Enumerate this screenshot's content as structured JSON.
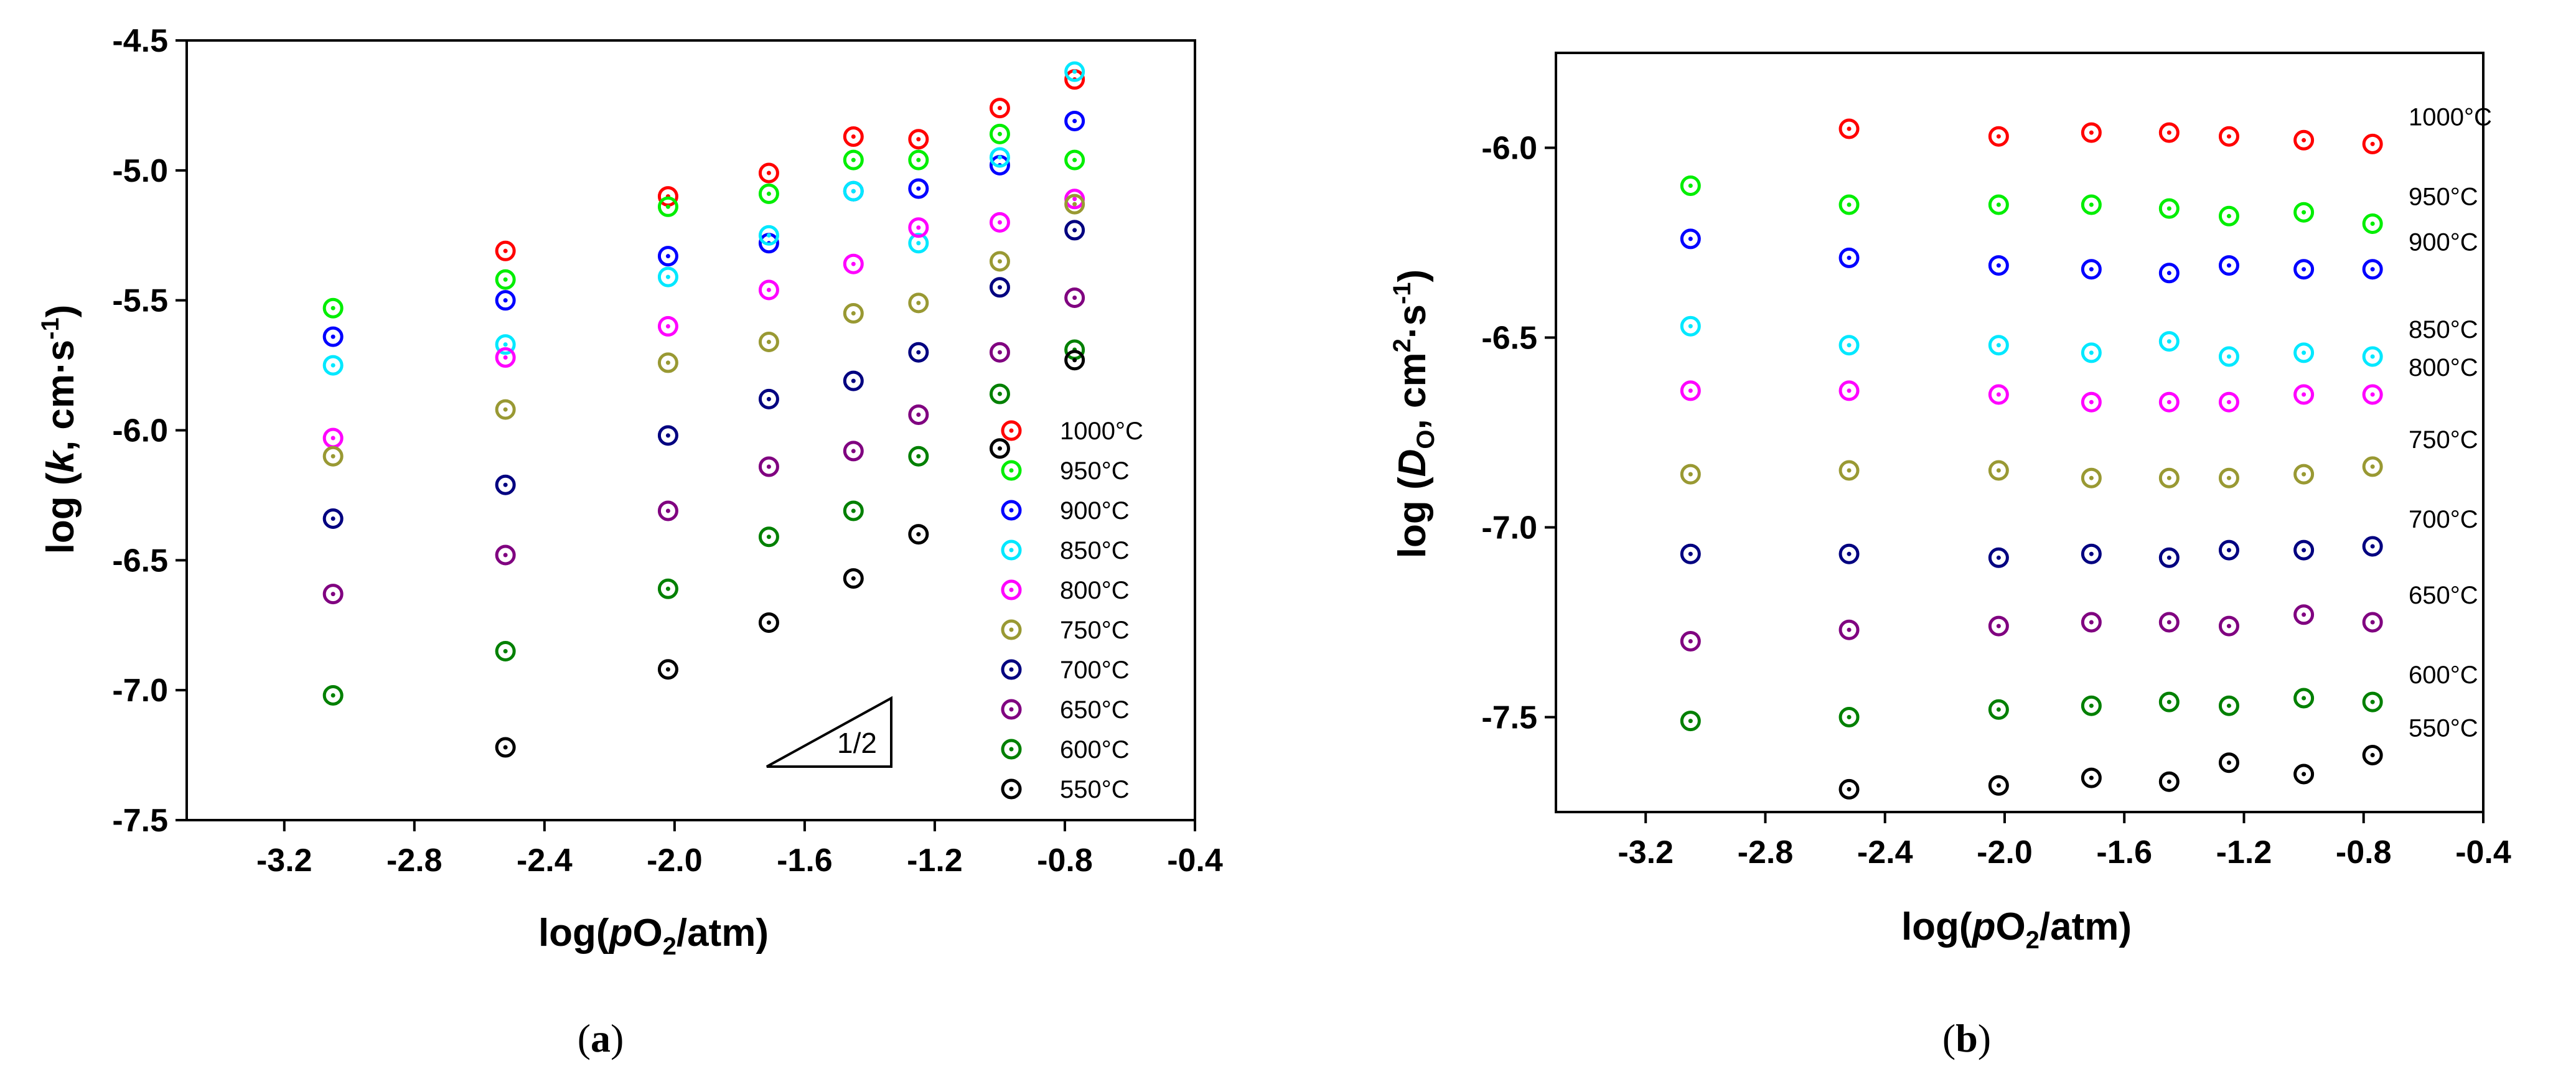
{
  "chart_data": [
    {
      "type": "scatter",
      "panel_label": "(a)",
      "xlabel": "log(pO2/atm)",
      "ylabel": "log (k, cm·s-1)",
      "xlim": [
        -3.5,
        -0.4
      ],
      "ylim": [
        -7.5,
        -4.5
      ],
      "x_ticks": [
        "-3.2",
        "-2.8",
        "-2.4",
        "-2.0",
        "-1.6",
        "-1.2",
        "-0.8",
        "-0.4"
      ],
      "y_ticks": [
        "-4.5",
        "-5.0",
        "-5.5",
        "-6.0",
        "-6.5",
        "-7.0",
        "-7.5"
      ],
      "x": [
        -3.05,
        -2.52,
        -2.02,
        -1.71,
        -1.45,
        -1.25,
        -1.0,
        -0.77
      ],
      "annotation": "1/2",
      "legend_position": "bottom-right",
      "series": [
        {
          "name": "1000°C",
          "color": "#ff0000",
          "values": [
            null,
            -5.31,
            -5.1,
            -5.01,
            -4.87,
            -4.88,
            -4.76,
            -4.65
          ]
        },
        {
          "name": "950°C",
          "color": "#00ee00",
          "values": [
            -5.53,
            -5.42,
            -5.14,
            -5.09,
            -4.96,
            -4.96,
            -4.86,
            -4.96
          ]
        },
        {
          "name": "900°C",
          "color": "#0000ff",
          "values": [
            -5.64,
            -5.5,
            -5.33,
            -5.28,
            -5.08,
            -5.07,
            -4.98,
            -4.81
          ]
        },
        {
          "name": "850°C",
          "color": "#00e8ff",
          "values": [
            -5.75,
            -5.67,
            -5.41,
            -5.25,
            -5.08,
            -5.28,
            -4.95,
            -4.62
          ]
        },
        {
          "name": "800°C",
          "color": "#ff00ff",
          "values": [
            -6.03,
            -5.72,
            -5.6,
            -5.46,
            -5.36,
            -5.22,
            -5.2,
            -5.11
          ]
        },
        {
          "name": "750°C",
          "color": "#999933",
          "values": [
            -6.1,
            -5.92,
            -5.74,
            -5.66,
            -5.55,
            -5.51,
            -5.35,
            -5.13
          ]
        },
        {
          "name": "700°C",
          "color": "#000080",
          "values": [
            -6.34,
            -6.21,
            -6.02,
            -5.88,
            -5.81,
            -5.7,
            -5.45,
            -5.23
          ]
        },
        {
          "name": "650°C",
          "color": "#800080",
          "values": [
            -6.63,
            -6.48,
            -6.31,
            -6.14,
            -6.08,
            -5.94,
            -5.7,
            -5.49
          ]
        },
        {
          "name": "600°C",
          "color": "#008000",
          "values": [
            -7.02,
            -6.85,
            -6.61,
            -6.41,
            -6.31,
            -6.1,
            -5.86,
            -5.69
          ]
        },
        {
          "name": "550°C",
          "color": "#000000",
          "values": [
            null,
            -7.22,
            -6.92,
            -6.74,
            -6.57,
            -6.4,
            -6.07,
            -5.73
          ]
        }
      ]
    },
    {
      "type": "scatter",
      "panel_label": "(b)",
      "xlabel": "log(pO2/atm)",
      "ylabel": "log (DO, cm2·s-1)",
      "xlim": [
        -3.5,
        -0.4
      ],
      "ylim": [
        -7.75,
        -5.75
      ],
      "x_ticks": [
        "-3.2",
        "-2.8",
        "-2.4",
        "-2.0",
        "-1.6",
        "-1.2",
        "-0.8",
        "-0.4"
      ],
      "y_ticks": [
        "-6.0",
        "-6.5",
        "-7.0",
        "-7.5"
      ],
      "x": [
        -3.05,
        -2.52,
        -2.02,
        -1.71,
        -1.45,
        -1.25,
        -1.0,
        -0.77
      ],
      "legend_position": "right, beside each series",
      "series": [
        {
          "name": "1000°C",
          "color": "#ff0000",
          "values": [
            null,
            -5.95,
            -5.97,
            -5.96,
            -5.96,
            -5.97,
            -5.98,
            -5.99
          ]
        },
        {
          "name": "950°C",
          "color": "#00ee00",
          "values": [
            -6.1,
            -6.15,
            -6.15,
            -6.15,
            -6.16,
            -6.18,
            -6.17,
            -6.2
          ]
        },
        {
          "name": "900°C",
          "color": "#0000ff",
          "values": [
            -6.24,
            -6.29,
            -6.31,
            -6.32,
            -6.33,
            -6.31,
            -6.32,
            -6.32
          ]
        },
        {
          "name": "850°C",
          "color": "#00e8ff",
          "values": [
            -6.47,
            -6.52,
            -6.52,
            -6.54,
            -6.51,
            -6.55,
            -6.54,
            -6.55
          ]
        },
        {
          "name": "800°C",
          "color": "#ff00ff",
          "values": [
            -6.64,
            -6.64,
            -6.65,
            -6.67,
            -6.67,
            -6.67,
            -6.65,
            -6.65
          ]
        },
        {
          "name": "750°C",
          "color": "#999933",
          "values": [
            -6.86,
            -6.85,
            -6.85,
            -6.87,
            -6.87,
            -6.87,
            -6.86,
            -6.84
          ]
        },
        {
          "name": "700°C",
          "color": "#000080",
          "values": [
            -7.07,
            -7.07,
            -7.08,
            -7.07,
            -7.08,
            -7.06,
            -7.06,
            -7.05
          ]
        },
        {
          "name": "650°C",
          "color": "#800080",
          "values": [
            -7.3,
            -7.27,
            -7.26,
            -7.25,
            -7.25,
            -7.26,
            -7.23,
            -7.25
          ]
        },
        {
          "name": "600°C",
          "color": "#008000",
          "values": [
            -7.51,
            -7.5,
            -7.48,
            -7.47,
            -7.46,
            -7.47,
            -7.45,
            -7.46
          ]
        },
        {
          "name": "550°C",
          "color": "#000000",
          "values": [
            null,
            -7.69,
            -7.68,
            -7.66,
            -7.67,
            -7.62,
            -7.65,
            -7.6
          ]
        }
      ]
    }
  ]
}
